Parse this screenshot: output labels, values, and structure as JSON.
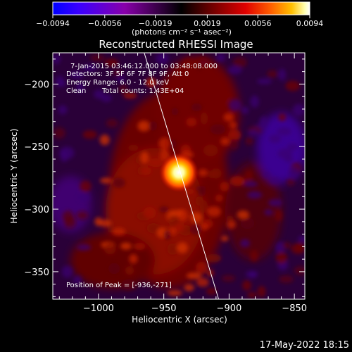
{
  "chart_data": {
    "type": "heatmap",
    "title": "Reconstructed RHESSI Image",
    "xlabel": "Heliocentric X (arcsec)",
    "ylabel": "Heliocentric Y (arcsec)",
    "xlim": [
      -1035,
      -842
    ],
    "ylim": [
      -372,
      -175
    ],
    "x_ticks": [
      -1000,
      -950,
      -900,
      -850
    ],
    "y_ticks": [
      -350,
      -300,
      -250,
      -200
    ],
    "x_tick_labels": [
      "−1000",
      "−950",
      "−900",
      "−850"
    ],
    "y_tick_labels": [
      "−350",
      "−300",
      "−250",
      "−200"
    ],
    "colorbar": {
      "range": [
        -0.0094,
        0.0094
      ],
      "ticks": [
        -0.0094,
        -0.0056,
        -0.0019,
        0.0019,
        0.0056,
        0.0094
      ],
      "tick_labels": [
        "−0.0094",
        "−0.0056",
        "−0.0019",
        "0.0019",
        "0.0056",
        "0.0094"
      ],
      "unit_label": "(photons cm⁻² s⁻¹ asec⁻²)",
      "colors": [
        "#0000ff",
        "#3a00ff",
        "#8800aa",
        "#000000",
        "#700000",
        "#e00000",
        "#ff6000",
        "#ffc000",
        "#ffffb0",
        "#ffffff"
      ]
    },
    "annotations": {
      "time_range": "7-Jan-2015 03:46:12.000 to 03:48:08.000",
      "detectors": "Detectors: 3F 5F 6F 7F 8F 9F, Att 0",
      "energy_range": "Energy Range: 6.0 - 12.0 keV",
      "method": "Clean",
      "total_counts": "Total counts: 1.43E+04",
      "peak": "Position of Peak = [-936,-271]"
    },
    "peak_position": [
      -936,
      -271
    ],
    "limb_line": [
      [
        -965,
        -175
      ],
      [
        -908,
        -372
      ]
    ]
  },
  "timestamp": "17-May-2022 18:15"
}
